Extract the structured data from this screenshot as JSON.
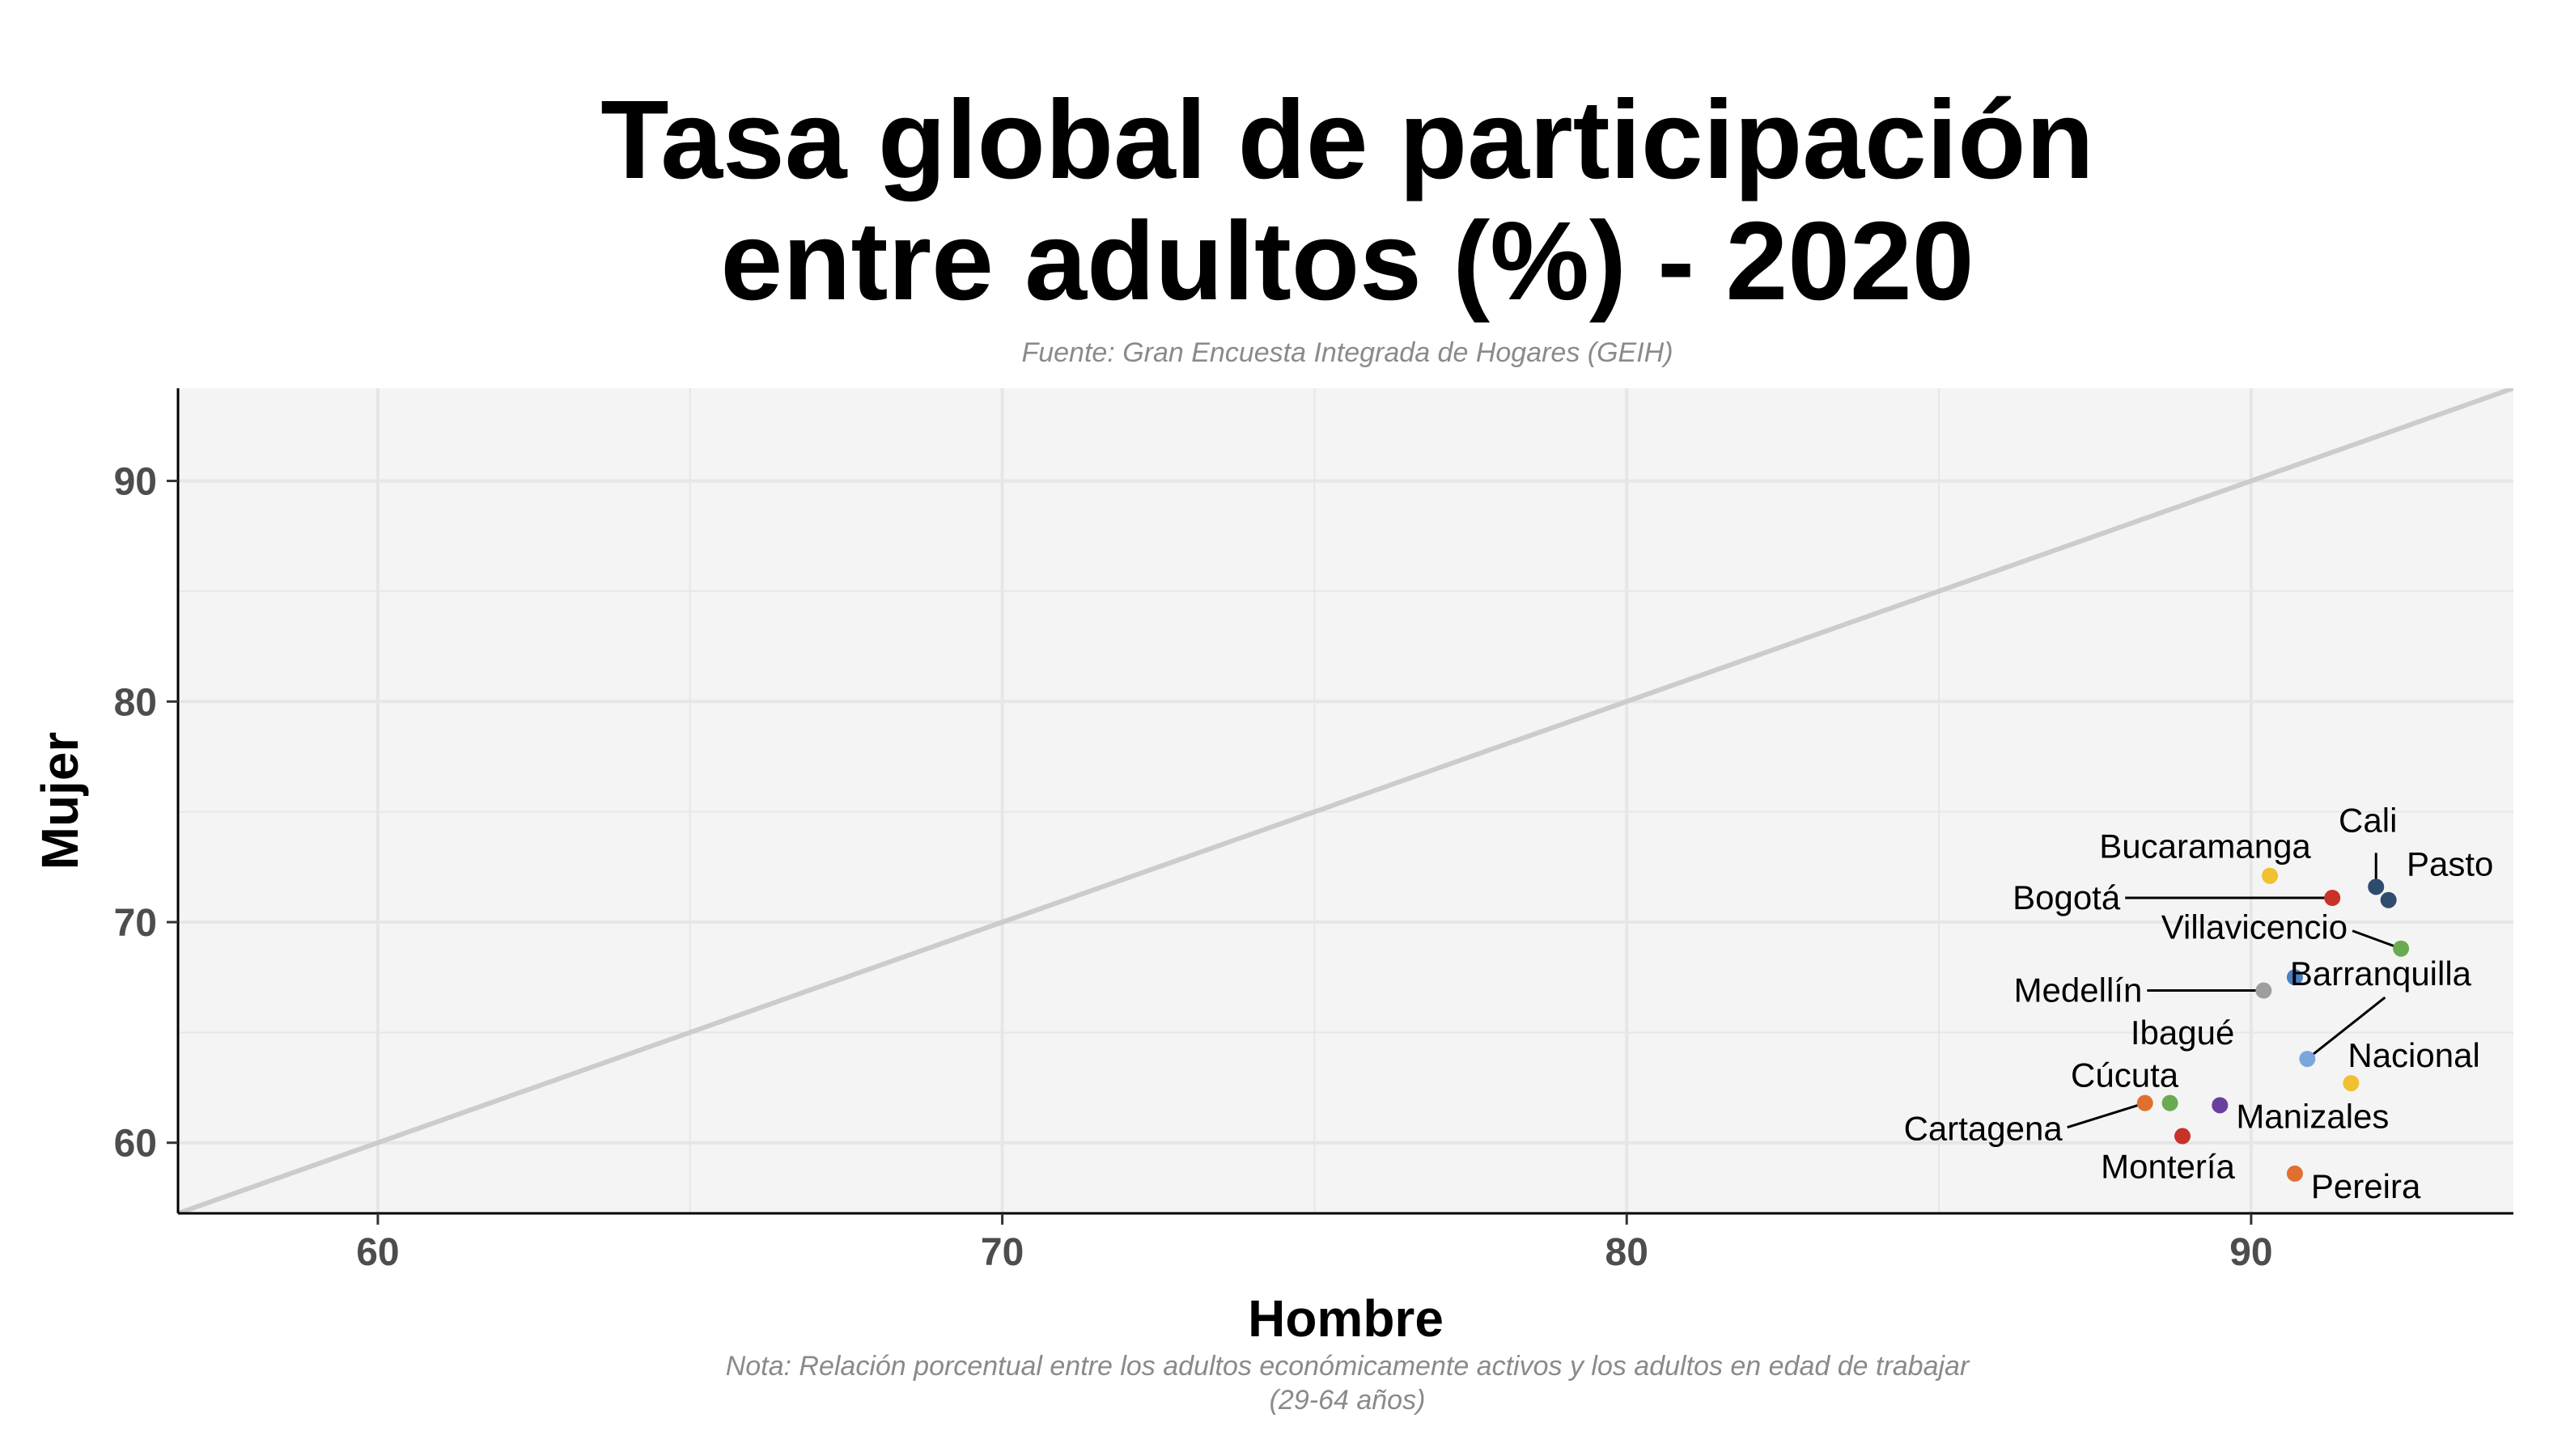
{
  "chart_data": {
    "type": "scatter",
    "title_lines": [
      "Tasa global de participación",
      "entre adultos (%) - 2020"
    ],
    "subtitle": "Fuente: Gran Encuesta Integrada de Hogares (GEIH)",
    "xlabel": "Hombre",
    "ylabel": "Mujer",
    "caption_lines": [
      "Nota: Relación porcentual entre los adultos económicamente activos y los adultos en edad de trabajar",
      "(29-64 años)"
    ],
    "xlim": [
      56.8,
      94.2
    ],
    "ylim": [
      56.8,
      94.2
    ],
    "xticks": [
      60,
      70,
      80,
      90
    ],
    "yticks": [
      60,
      70,
      80,
      90
    ],
    "reference_line": "y = x",
    "grid": true,
    "legend": "none",
    "colors": {
      "panel": "#f4f4f4",
      "grid": "#e6e6e6",
      "reference_line": "#cccccc",
      "axis": "#000000"
    },
    "points": [
      {
        "label": "Cali",
        "x": 92.0,
        "y": 71.6,
        "color": "#2f4b6e"
      },
      {
        "label": "Pasto",
        "x": 92.2,
        "y": 71.0,
        "color": "#2f4b6e"
      },
      {
        "label": "Bucaramanga",
        "x": 90.3,
        "y": 72.1,
        "color": "#f0c030"
      },
      {
        "label": "Bogotá",
        "x": 91.3,
        "y": 71.1,
        "color": "#c83228"
      },
      {
        "label": "Villavicencio",
        "x": 92.4,
        "y": 68.8,
        "color": "#6aaa50"
      },
      {
        "label": "Barranquilla",
        "x": 90.7,
        "y": 67.5,
        "color": "#4a7fc0"
      },
      {
        "label": "Medellín",
        "x": 90.2,
        "y": 66.9,
        "color": "#9e9e9e"
      },
      {
        "label": "Ibagué",
        "x": 90.9,
        "y": 63.8,
        "color": "#7aa6dc"
      },
      {
        "label": "Nacional",
        "x": 91.6,
        "y": 62.7,
        "color": "#f0c030"
      },
      {
        "label": "Manizales",
        "x": 89.5,
        "y": 61.7,
        "color": "#6b3fa0"
      },
      {
        "label": "Cúcuta",
        "x": 88.7,
        "y": 61.8,
        "color": "#6aaa50"
      },
      {
        "label": "Cartagena",
        "x": 88.3,
        "y": 61.8,
        "color": "#e07030"
      },
      {
        "label": "Montería",
        "x": 88.9,
        "y": 60.3,
        "color": "#c83228"
      },
      {
        "label": "Pereira",
        "x": 90.7,
        "y": 58.6,
        "color": "#e07030"
      }
    ]
  }
}
